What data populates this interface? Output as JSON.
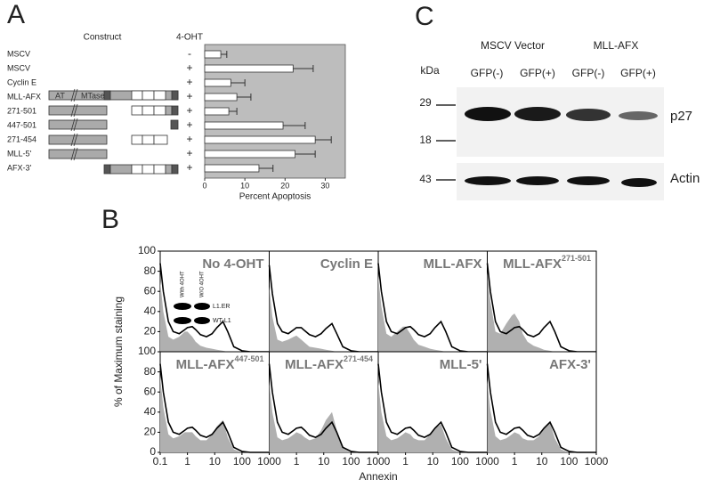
{
  "chart_data": [
    {
      "type": "bar",
      "orientation": "horizontal",
      "panel_label": "A",
      "column_headers": [
        "Construct",
        "4-OHT"
      ],
      "categories": [
        "MSCV",
        "MSCV",
        "Cyclin E",
        "MLL-AFX",
        "271-501",
        "447-501",
        "271-454",
        "MLL-5'",
        "AFX-3'"
      ],
      "treatment": [
        "-",
        "+",
        "+",
        "+",
        "+",
        "+",
        "+",
        "+",
        "+"
      ],
      "domain_labels": [
        "AT",
        "MTase"
      ],
      "values": [
        4,
        22,
        6.5,
        8,
        6,
        19.5,
        27.5,
        22.5,
        13.5
      ],
      "errors": [
        1.5,
        5,
        3.5,
        3.5,
        2,
        5.5,
        4,
        5,
        3.5
      ],
      "color": "#ffffff",
      "background": "#bdbdbd",
      "xlim": [
        0,
        35
      ],
      "xticks": [
        0,
        10,
        20,
        30
      ],
      "xlabel": "Percent Apoptosis"
    },
    {
      "type": "line",
      "panel_label": "B",
      "log_x": true,
      "ylabel": "% of Maximum staining",
      "xlabel": "Annexin",
      "xlim": [
        0.1,
        1000
      ],
      "xticks": [
        0.1,
        1,
        10,
        100,
        1000
      ],
      "ylim": [
        0,
        100
      ],
      "yticks": [
        0,
        20,
        40,
        60,
        80,
        100
      ],
      "inset": {
        "columns": [
          "With 4OHT",
          "W/O 4OHT"
        ],
        "rows": [
          "L1.ER",
          "WT-L1"
        ]
      },
      "x": [
        0.1,
        0.13,
        0.2,
        0.3,
        0.5,
        0.8,
        1,
        1.5,
        2,
        3,
        5,
        8,
        12,
        20,
        30,
        50,
        100,
        200,
        1000
      ],
      "panels": [
        {
          "title": "No 4-OHT",
          "series": [
            {
              "color": "#b0b0b0",
              "values": [
                70,
                40,
                15,
                12,
                15,
                20,
                20,
                15,
                10,
                6,
                4,
                3,
                2,
                1,
                0,
                0,
                0,
                0,
                0
              ]
            },
            {
              "color": "#000000",
              "values": [
                88,
                60,
                30,
                20,
                18,
                22,
                24,
                25,
                22,
                17,
                15,
                18,
                24,
                30,
                20,
                5,
                1,
                0,
                0
              ]
            }
          ]
        },
        {
          "title": "Cyclin E",
          "series": [
            {
              "color": "#b0b0b0",
              "values": [
                65,
                35,
                12,
                10,
                12,
                15,
                16,
                12,
                9,
                5,
                4,
                3,
                2,
                1,
                0,
                0,
                0,
                0,
                0
              ]
            },
            {
              "color": "#000000",
              "values": [
                86,
                58,
                28,
                20,
                18,
                22,
                24,
                24,
                21,
                17,
                15,
                18,
                23,
                28,
                18,
                5,
                1,
                0,
                0
              ]
            }
          ]
        },
        {
          "title": "MLL-AFX",
          "series": [
            {
              "color": "#b0b0b0",
              "values": [
                75,
                45,
                18,
                15,
                20,
                25,
                25,
                18,
                12,
                7,
                5,
                3,
                2,
                1,
                0,
                0,
                0,
                0,
                0
              ]
            },
            {
              "color": "#000000",
              "values": [
                88,
                60,
                30,
                20,
                18,
                22,
                24,
                25,
                22,
                17,
                15,
                18,
                24,
                30,
                20,
                5,
                1,
                0,
                0
              ]
            }
          ]
        },
        {
          "title": "MLL-AFX",
          "title_sup": "271-501",
          "series": [
            {
              "color": "#b0b0b0",
              "values": [
                80,
                50,
                20,
                18,
                28,
                36,
                38,
                30,
                18,
                10,
                6,
                4,
                2,
                1,
                0,
                0,
                0,
                0,
                0
              ]
            },
            {
              "color": "#000000",
              "values": [
                88,
                60,
                30,
                20,
                18,
                22,
                24,
                25,
                22,
                17,
                15,
                18,
                24,
                30,
                20,
                5,
                1,
                0,
                0
              ]
            }
          ]
        },
        {
          "title": "MLL-AFX",
          "title_sup": "447-501",
          "series": [
            {
              "color": "#b0b0b0",
              "values": [
                75,
                45,
                18,
                14,
                16,
                20,
                20,
                20,
                16,
                12,
                12,
                18,
                26,
                32,
                15,
                3,
                0,
                0,
                0
              ]
            },
            {
              "color": "#000000",
              "values": [
                88,
                60,
                30,
                20,
                18,
                22,
                24,
                25,
                22,
                17,
                15,
                18,
                24,
                30,
                20,
                5,
                1,
                0,
                0
              ]
            }
          ]
        },
        {
          "title": "MLL-AFX",
          "title_sup": "271-454",
          "series": [
            {
              "color": "#b0b0b0",
              "values": [
                70,
                40,
                15,
                12,
                14,
                18,
                20,
                18,
                15,
                12,
                14,
                22,
                32,
                40,
                22,
                4,
                0,
                0,
                0
              ]
            },
            {
              "color": "#000000",
              "values": [
                88,
                60,
                30,
                20,
                18,
                22,
                24,
                25,
                22,
                17,
                15,
                18,
                24,
                30,
                20,
                5,
                1,
                0,
                0
              ]
            }
          ]
        },
        {
          "title": "MLL-5'",
          "series": [
            {
              "color": "#b0b0b0",
              "values": [
                70,
                40,
                16,
                12,
                14,
                18,
                20,
                18,
                14,
                12,
                12,
                18,
                24,
                28,
                14,
                3,
                0,
                0,
                0
              ]
            },
            {
              "color": "#000000",
              "values": [
                88,
                60,
                30,
                20,
                18,
                22,
                24,
                25,
                22,
                17,
                15,
                18,
                24,
                30,
                20,
                5,
                1,
                0,
                0
              ]
            }
          ]
        },
        {
          "title": "AFX-3'",
          "series": [
            {
              "color": "#b0b0b0",
              "values": [
                72,
                42,
                16,
                12,
                14,
                18,
                20,
                18,
                14,
                12,
                12,
                16,
                24,
                30,
                14,
                3,
                0,
                0,
                0
              ]
            },
            {
              "color": "#000000",
              "values": [
                88,
                60,
                30,
                20,
                18,
                22,
                24,
                25,
                22,
                17,
                15,
                18,
                24,
                30,
                20,
                5,
                1,
                0,
                0
              ]
            }
          ]
        }
      ]
    }
  ],
  "blot": {
    "panel_label": "C",
    "groups": [
      "MSCV Vector",
      "MLL-AFX"
    ],
    "unit": "kDa",
    "lanes": [
      "GFP(-)",
      "GFP(+)",
      "GFP(-)",
      "GFP(+)"
    ],
    "markers": [
      "29",
      "18",
      "43"
    ],
    "proteins": [
      "p27",
      "Actin"
    ]
  }
}
